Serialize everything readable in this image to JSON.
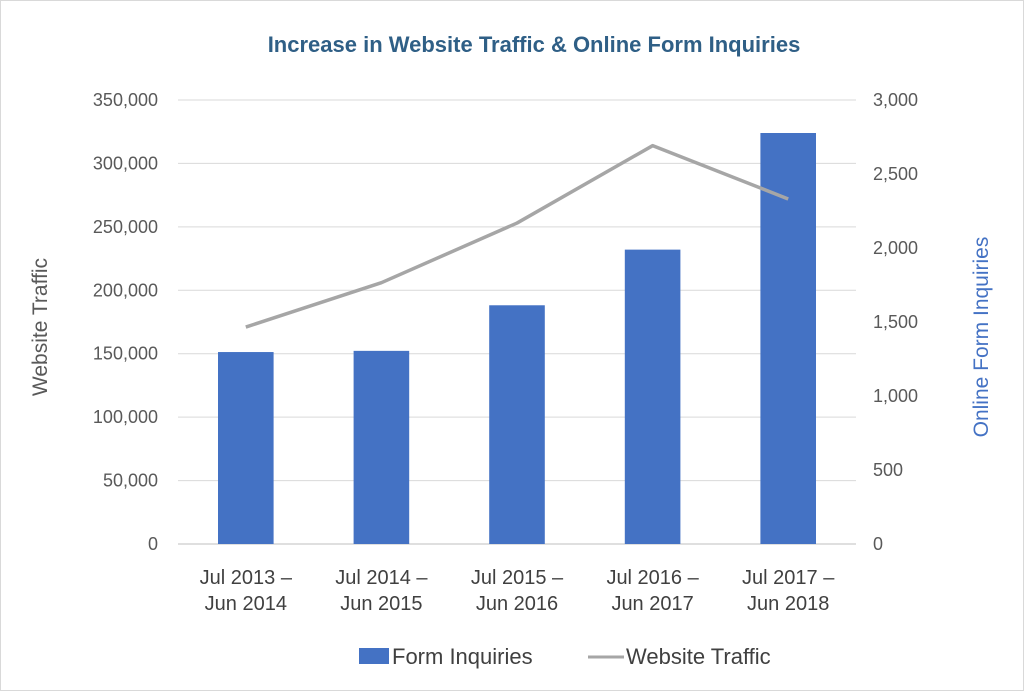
{
  "chart_data": {
    "type": "bar",
    "title": "Increase in Website Traffic & Online Form Inquiries",
    "categories": [
      [
        "Jul 2013 –",
        "Jun 2014"
      ],
      [
        "Jul 2014 –",
        "Jun 2015"
      ],
      [
        "Jul 2015 –",
        "Jun 2016"
      ],
      [
        "Jul 2016 –",
        "Jun 2017"
      ],
      [
        "Jul 2017 –",
        "Jun 2018"
      ]
    ],
    "y_left": {
      "label": "Website Traffic",
      "range": [
        0,
        350000
      ],
      "ticks": [
        "0",
        "50,000",
        "100,000",
        "150,000",
        "200,000",
        "250,000",
        "300,000",
        "350,000"
      ]
    },
    "y_right": {
      "label": "Online Form Inquiries",
      "range": [
        0,
        3000
      ],
      "ticks": [
        "0",
        "500",
        "1,000",
        "1,500",
        "2,000",
        "2,500",
        "3,000"
      ]
    },
    "series": [
      {
        "name": "Form Inquiries",
        "type": "bar",
        "axis": "right",
        "color": "#4472c4",
        "values": [
          1297,
          1305,
          1613,
          1989,
          2777
        ]
      },
      {
        "name": "Website Traffic",
        "type": "line",
        "axis": "left",
        "color": "#a6a6a6",
        "values": [
          171000,
          206000,
          253000,
          314000,
          272000
        ]
      }
    ],
    "grid": true,
    "legend": "bottom"
  }
}
